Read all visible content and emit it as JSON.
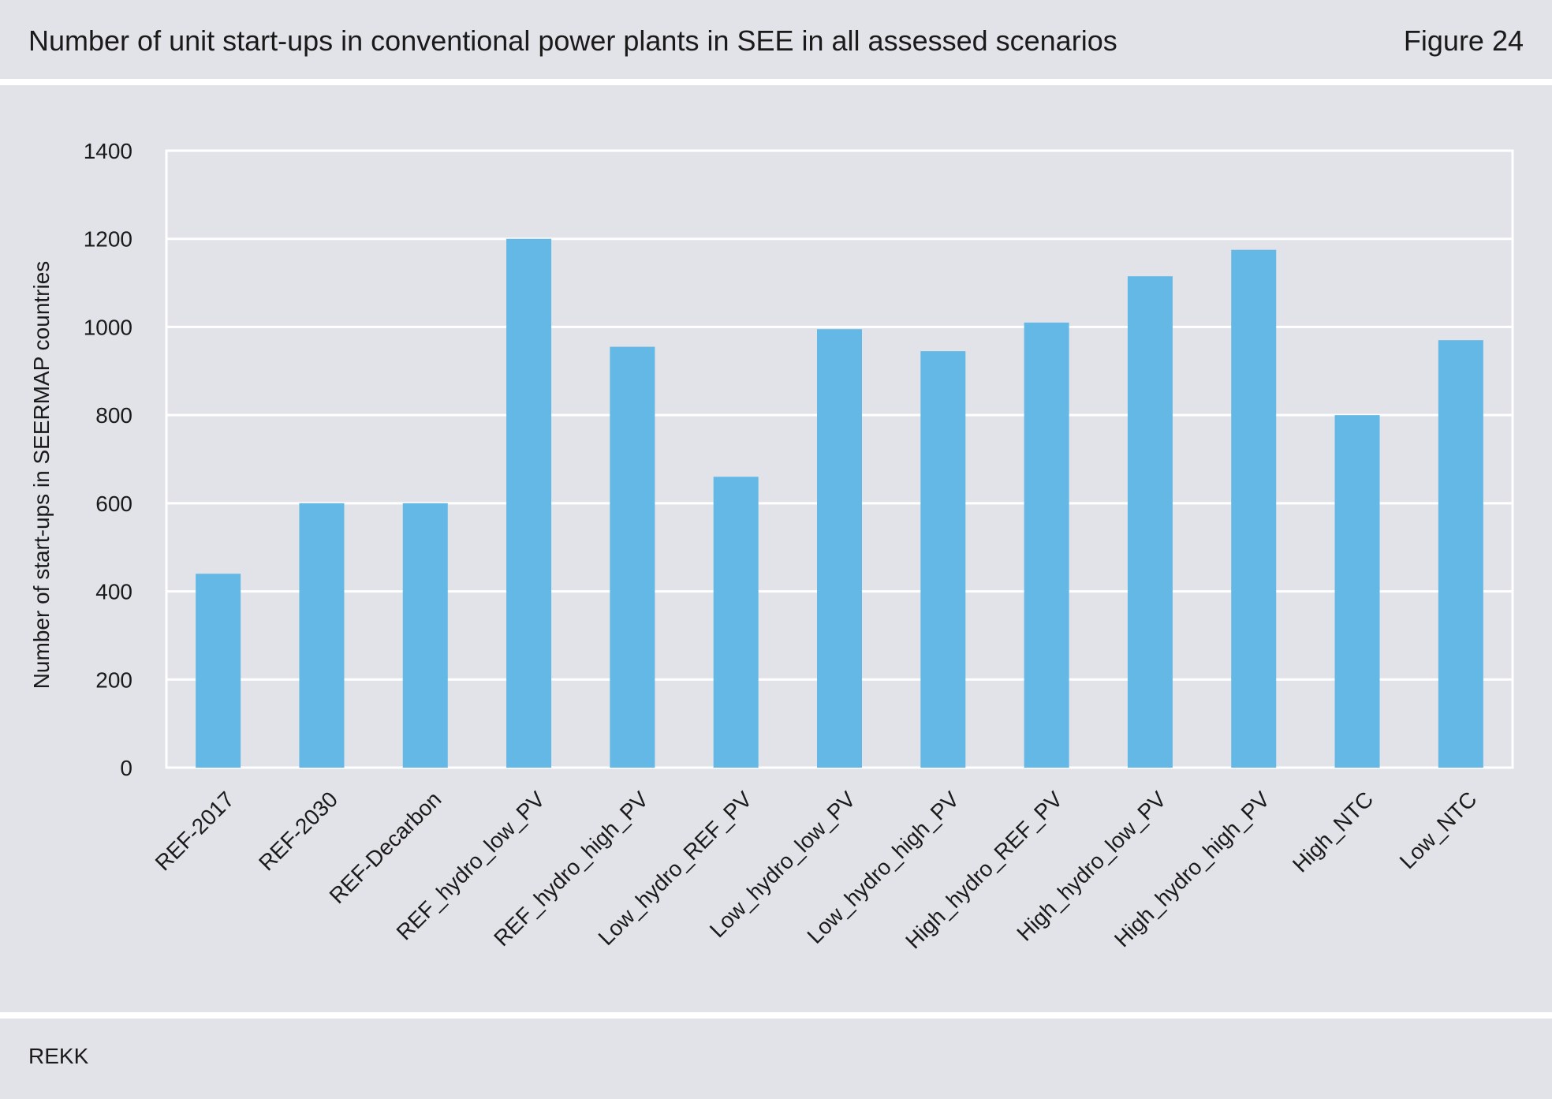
{
  "header": {
    "title": "Number of unit start-ups in conventional power plants in SEE in all assessed scenarios",
    "figure_label": "Figure 24"
  },
  "footer": {
    "source": "REKK"
  },
  "colors": {
    "bar": "#63b8e6",
    "grid": "#ffffff",
    "panel": "#e1e3e8"
  },
  "chart_data": {
    "type": "bar",
    "title": "",
    "xlabel": "",
    "ylabel": "Number of start-ups in SEERMAP countries",
    "ylim": [
      0,
      1400
    ],
    "yticks": [
      0,
      200,
      400,
      600,
      800,
      1000,
      1200,
      1400
    ],
    "grid": true,
    "categories": [
      "REF-2017",
      "REF-2030",
      "REF-Decarbon",
      "REF_hydro_low_PV",
      "REF_hydro_high_PV",
      "Low_hydro_REF_PV",
      "Low_hydro_low_PV",
      "Low_hydro_high_PV",
      "High_hydro_REF_PV",
      "High_hydro_low_PV",
      "High_hydro_high_PV",
      "High_NTC",
      "Low_NTC"
    ],
    "values": [
      440,
      600,
      600,
      1200,
      955,
      660,
      995,
      945,
      1010,
      1115,
      1175,
      800,
      970
    ]
  }
}
